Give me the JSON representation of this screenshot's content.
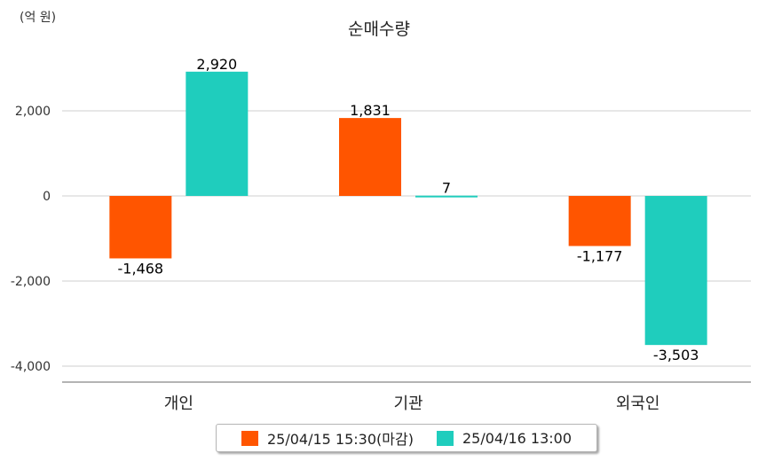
{
  "chart_data": {
    "type": "bar",
    "title": "순매수량",
    "unit_label": "(억 원)",
    "categories": [
      "개인",
      "기관",
      "외국인"
    ],
    "series": [
      {
        "name": "25/04/15 15:30(마감)",
        "color": "#ff5500",
        "values": [
          -1468,
          1831,
          -1177
        ]
      },
      {
        "name": "25/04/16 13:00",
        "color": "#1fcdbd",
        "values": [
          2920,
          7,
          -3503
        ]
      }
    ],
    "ylim": [
      -4400,
      3200
    ],
    "yticks": [
      2000,
      0,
      -2000,
      -4000
    ],
    "ytick_labels": [
      "2,000",
      "0",
      "-2,000",
      "-4,000"
    ],
    "data_labels": [
      [
        "-1,468",
        "1,831",
        "-1,177"
      ],
      [
        "2,920",
        "7",
        "-3,503"
      ]
    ],
    "grid": true,
    "legend_position": "bottom"
  }
}
